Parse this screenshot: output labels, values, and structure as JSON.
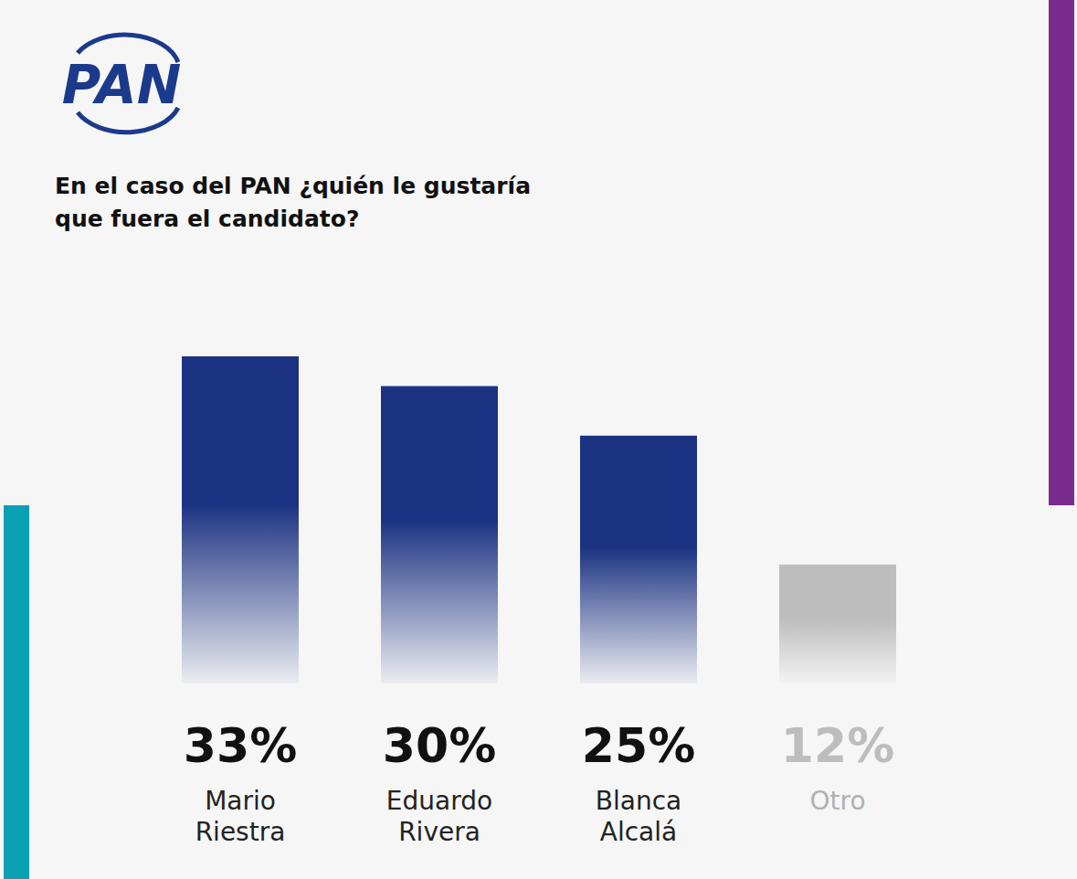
{
  "chart_data": {
    "type": "bar",
    "title": "En el caso del PAN ¿quién le gustaría que fuera el candidato?",
    "annotations": [
      "PAN"
    ],
    "categories": [
      "Mario Riestra",
      "Eduardo Rivera",
      "Blanca Alcalá",
      "Otro"
    ],
    "values": [
      33,
      30,
      25,
      12
    ],
    "value_labels": [
      "33%",
      "30%",
      "25%",
      "12%"
    ],
    "colors": [
      "#1b3282",
      "#1b3282",
      "#1b3282",
      "#bdbdbd"
    ],
    "ylim": [
      0,
      33
    ],
    "data_labels": true,
    "tick_labels": "x",
    "grid": false
  }
}
